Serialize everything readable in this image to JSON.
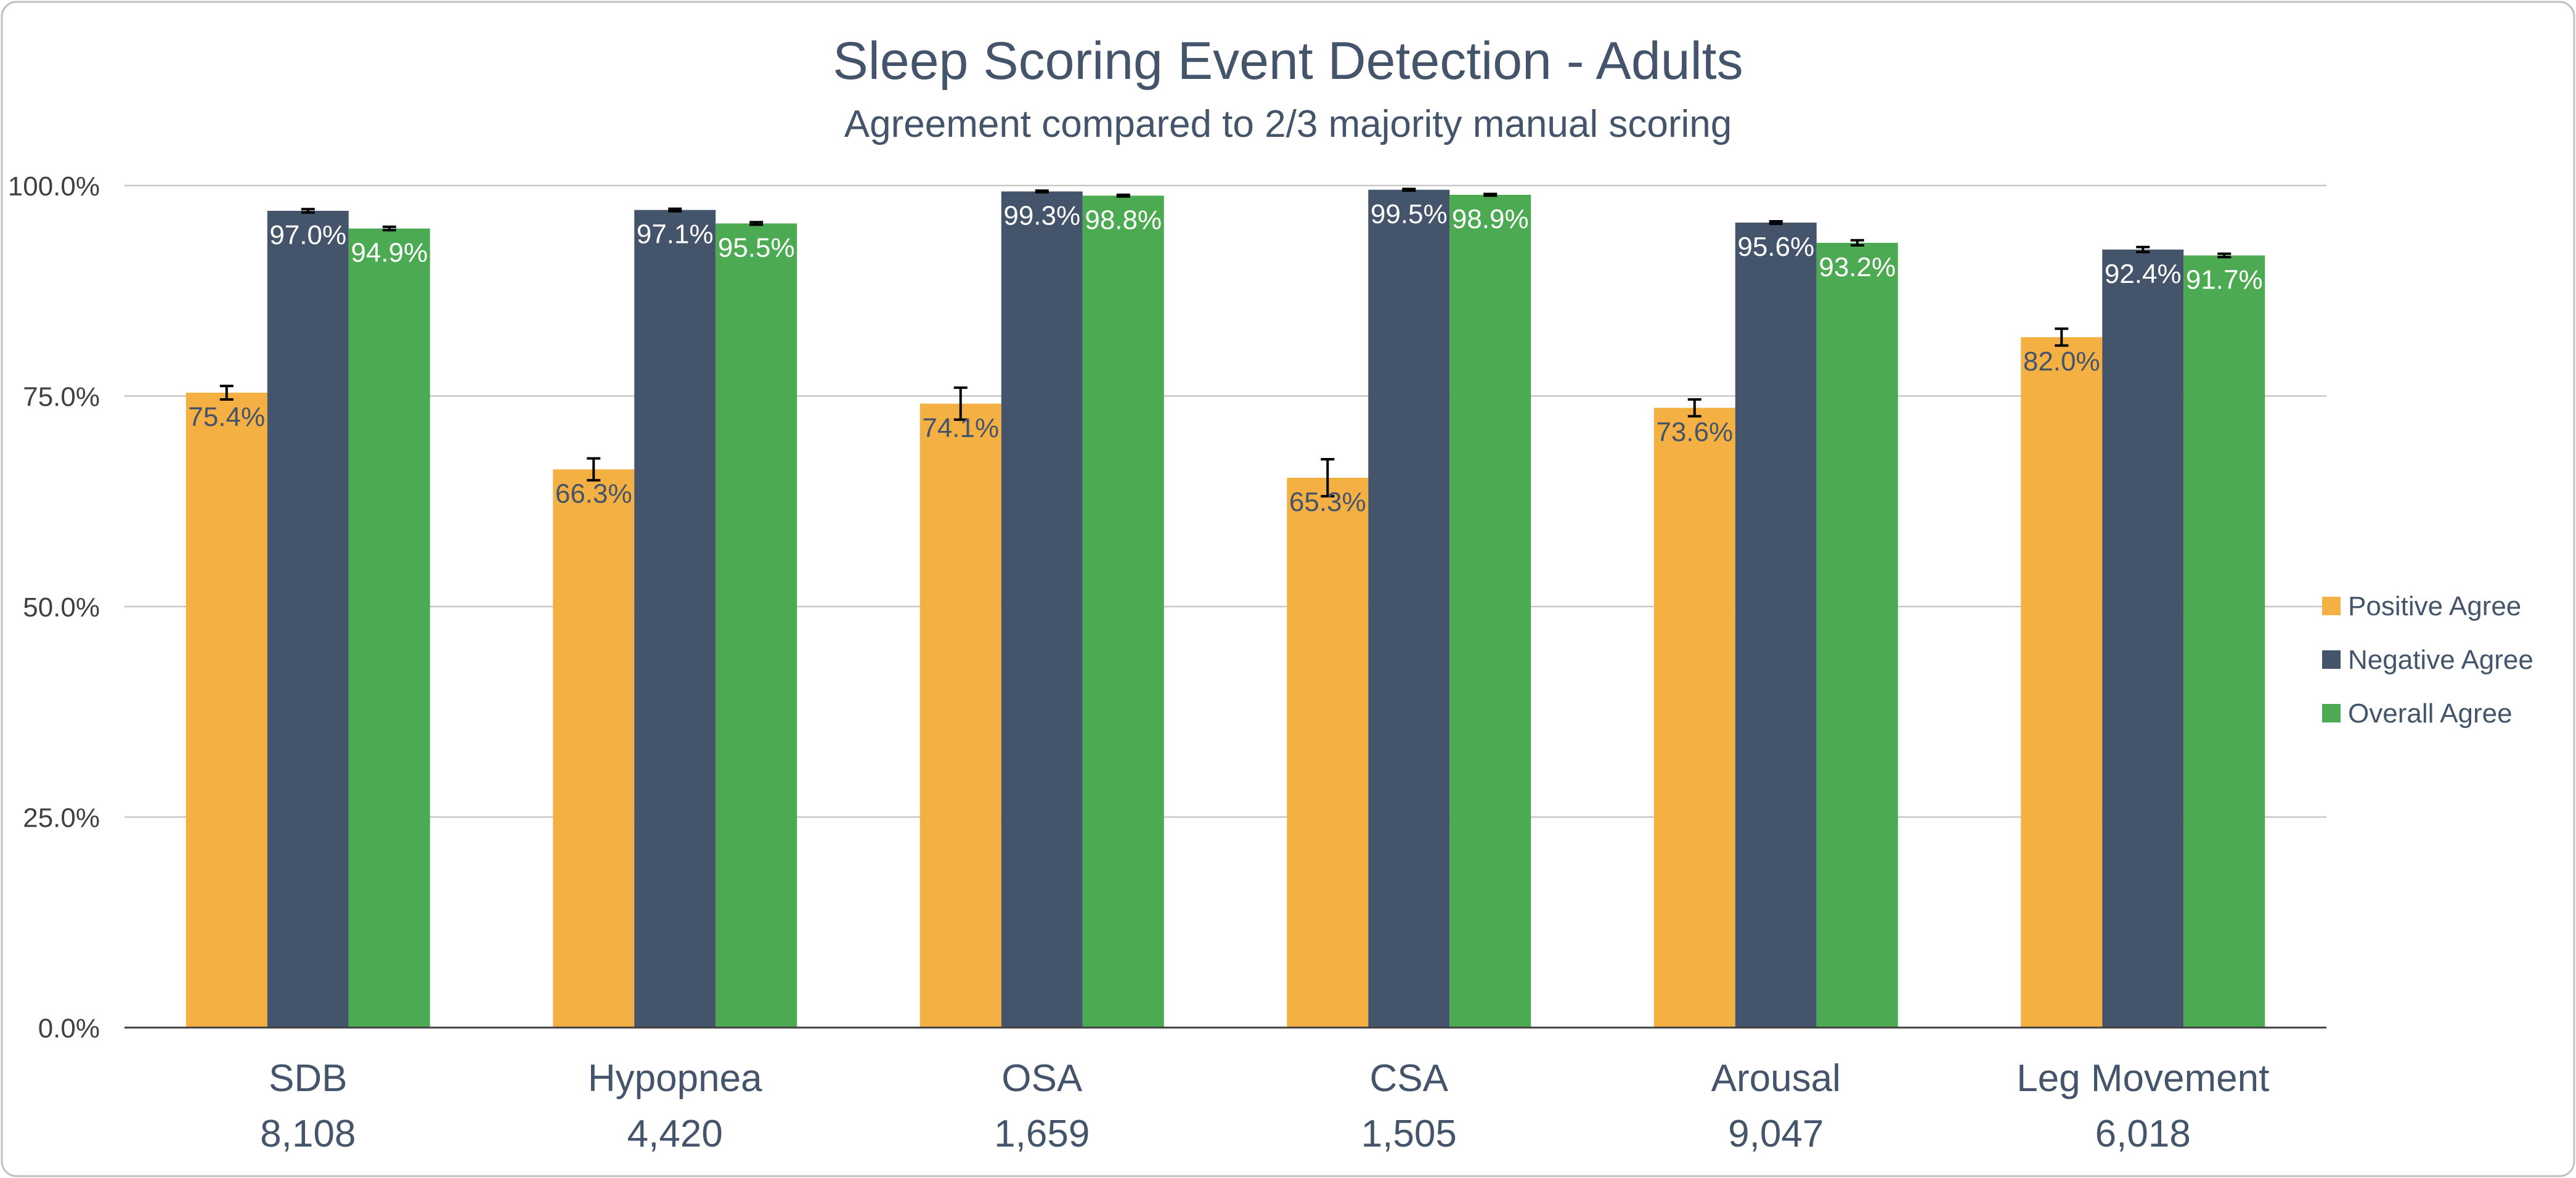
{
  "chart_data": {
    "type": "bar",
    "title": "Sleep Scoring Event Detection - Adults",
    "subtitle": "Agreement compared to 2/3 majority manual scoring",
    "categories": [
      "SDB",
      "Hypopnea",
      "OSA",
      "CSA",
      "Arousal",
      "Leg Movement"
    ],
    "category_counts": [
      "8,108",
      "4,420",
      "1,659",
      "1,505",
      "9,047",
      "6,018"
    ],
    "series": [
      {
        "name": "Positive Agree",
        "color": "#f4b042",
        "values": [
          75.4,
          66.3,
          74.1,
          65.3,
          73.6,
          82.0
        ],
        "labels": [
          "75.4%",
          "66.3%",
          "74.1%",
          "65.3%",
          "73.6%",
          "82.0%"
        ],
        "error": [
          0.8,
          1.3,
          1.9,
          2.2,
          1.0,
          1.0
        ]
      },
      {
        "name": "Negative Agree",
        "color": "#44546a",
        "values": [
          97.0,
          97.1,
          99.3,
          99.5,
          95.6,
          92.4
        ],
        "labels": [
          "97.0%",
          "97.1%",
          "99.3%",
          "99.5%",
          "95.6%",
          "92.4%"
        ],
        "error": [
          0.2,
          0.15,
          0.1,
          0.1,
          0.15,
          0.3
        ]
      },
      {
        "name": "Overall Agree",
        "color": "#4caa52",
        "values": [
          94.9,
          95.5,
          98.8,
          98.9,
          93.2,
          91.7
        ],
        "labels": [
          "94.9%",
          "95.5%",
          "98.8%",
          "98.9%",
          "93.2%",
          "91.7%"
        ],
        "error": [
          0.2,
          0.15,
          0.1,
          0.1,
          0.3,
          0.2
        ]
      }
    ],
    "ylim": [
      0,
      100
    ],
    "yticks": [
      0,
      25,
      50,
      75,
      100
    ],
    "ytick_labels": [
      "0.0%",
      "25.0%",
      "50.0%",
      "75.0%",
      "100.0%"
    ],
    "xlabel": "",
    "ylabel": "",
    "grid": true,
    "legend_position": "right"
  }
}
